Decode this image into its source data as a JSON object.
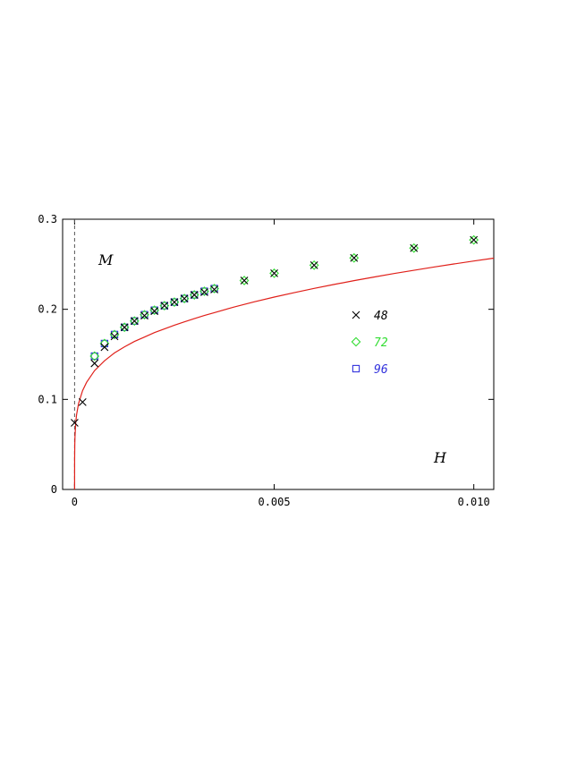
{
  "chart_data": {
    "type": "scatter",
    "xlabel": "H",
    "ylabel": "M",
    "xlim": [
      -0.0003,
      0.0105
    ],
    "ylim": [
      0,
      0.3
    ],
    "xticks": [
      0,
      0.005,
      0.01
    ],
    "xtick_labels": [
      "0",
      "0.005",
      "0.010"
    ],
    "yticks": [
      0,
      0.1,
      0.2,
      0.3
    ],
    "ytick_labels": [
      "0",
      "0.1",
      "0.2",
      "0.3"
    ],
    "grid": false,
    "legend_position": "middle-right",
    "zero_line": {
      "x": 0,
      "style": "dashed",
      "color": "#555555"
    },
    "fit_curve": {
      "color": "#e0201a",
      "x": [
        0,
        1e-06,
        5e-06,
        1e-05,
        3e-05,
        5e-05,
        0.0001,
        0.0002,
        0.0003,
        0.0005,
        0.00075,
        0.001,
        0.00125,
        0.0015,
        0.00175,
        0.002,
        0.00225,
        0.0025,
        0.00275,
        0.003,
        0.00325,
        0.0035,
        0.004,
        0.0045,
        0.005,
        0.0055,
        0.006,
        0.0065,
        0.007,
        0.0075,
        0.008,
        0.0085,
        0.009,
        0.0095,
        0.01,
        0.0105
      ],
      "y": [
        0,
        0.0337,
        0.05,
        0.0588,
        0.0751,
        0.083,
        0.0955,
        0.1097,
        0.1189,
        0.1319,
        0.1429,
        0.1516,
        0.1583,
        0.1643,
        0.1692,
        0.1741,
        0.1783,
        0.1823,
        0.1861,
        0.1897,
        0.1931,
        0.1963,
        0.2026,
        0.2083,
        0.2136,
        0.2185,
        0.2232,
        0.2276,
        0.2318,
        0.2358,
        0.2397,
        0.2433,
        0.2469,
        0.2503,
        0.2536,
        0.2568
      ]
    },
    "series": [
      {
        "name": "48",
        "marker": "x",
        "color": "#000000",
        "x": [
          0.0,
          0.0002,
          0.0005,
          0.00075,
          0.001,
          0.00125,
          0.0015,
          0.00175,
          0.002,
          0.00225,
          0.0025,
          0.00275,
          0.003,
          0.00325,
          0.0035,
          0.00425,
          0.005,
          0.006,
          0.007,
          0.0085,
          0.01
        ],
        "y": [
          0.074,
          0.097,
          0.14,
          0.158,
          0.17,
          0.18,
          0.187,
          0.193,
          0.198,
          0.204,
          0.208,
          0.212,
          0.216,
          0.219,
          0.222,
          0.232,
          0.24,
          0.249,
          0.257,
          0.268,
          0.277
        ]
      },
      {
        "name": "72",
        "marker": "diamond",
        "color": "#33dd33",
        "x": [
          0.0005,
          0.00075,
          0.001,
          0.00125,
          0.0015,
          0.00175,
          0.002,
          0.00225,
          0.0025,
          0.00275,
          0.003,
          0.00325,
          0.0035,
          0.00425,
          0.005,
          0.006,
          0.007,
          0.0085,
          0.01
        ],
        "y": [
          0.148,
          0.162,
          0.172,
          0.18,
          0.187,
          0.194,
          0.199,
          0.204,
          0.208,
          0.212,
          0.216,
          0.22,
          0.223,
          0.232,
          0.24,
          0.249,
          0.257,
          0.268,
          0.277
        ]
      },
      {
        "name": "96",
        "marker": "square",
        "color": "#3333dd",
        "x": [
          0.0005,
          0.00075,
          0.001,
          0.00125,
          0.0015,
          0.00175,
          0.002,
          0.00225,
          0.0025,
          0.00275,
          0.003,
          0.00325,
          0.0035
        ],
        "y": [
          0.148,
          0.162,
          0.172,
          0.18,
          0.187,
          0.194,
          0.199,
          0.204,
          0.208,
          0.212,
          0.216,
          0.22,
          0.223
        ]
      }
    ]
  }
}
